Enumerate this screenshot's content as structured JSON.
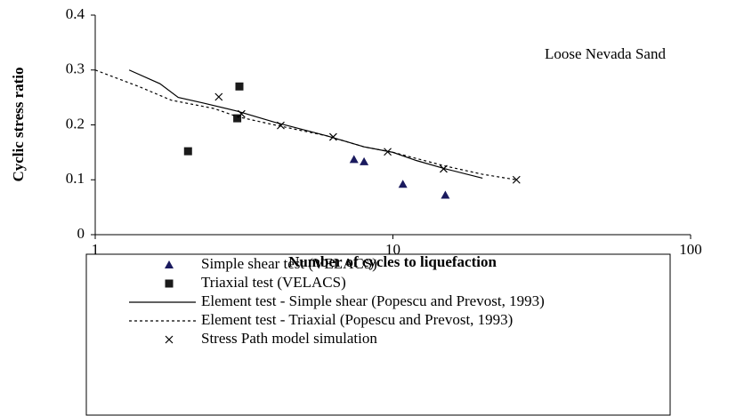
{
  "chart_data": {
    "type": "scatter",
    "annotation": "Loose Nevada Sand",
    "xlabel": "Number of cycles to liquefaction",
    "ylabel": "Cyclic stress ratio",
    "log_x": true,
    "xlim": [
      1,
      100
    ],
    "xticks": [
      1,
      10,
      100
    ],
    "ylim": [
      0,
      0.4
    ],
    "yticks": [
      0,
      0.1,
      0.2,
      0.3,
      0.4
    ],
    "series": [
      {
        "name": "Simple shear test (VELACS)",
        "marker": "triangle",
        "color": "#1a1a5e",
        "x": [
          7.4,
          8.0,
          10.8,
          15
        ],
        "values": [
          0.137,
          0.133,
          0.092,
          0.072
        ]
      },
      {
        "name": "Triaxial test (VELACS)",
        "marker": "square",
        "color": "#1a1a1a",
        "x": [
          3.05,
          3.0,
          2.05
        ],
        "values": [
          0.27,
          0.212,
          0.152
        ]
      },
      {
        "name": "Element test - Simple shear (Popescu and Prevost, 1993)",
        "line": "solid",
        "color": "#000000",
        "x": [
          1.3,
          1.65,
          1.9,
          2.3,
          3,
          4,
          6,
          8,
          10,
          12,
          15,
          20
        ],
        "values": [
          0.3,
          0.275,
          0.25,
          0.24,
          0.225,
          0.205,
          0.18,
          0.16,
          0.15,
          0.135,
          0.12,
          0.103
        ]
      },
      {
        "name": "Element test - Triaxial (Popescu and Prevost, 1993)",
        "line": "dotted",
        "color": "#000000",
        "x": [
          1,
          1.4,
          1.8,
          2.5,
          3,
          4,
          6,
          8,
          10,
          15,
          20,
          26
        ],
        "values": [
          0.3,
          0.27,
          0.245,
          0.23,
          0.215,
          0.2,
          0.18,
          0.16,
          0.15,
          0.125,
          0.11,
          0.1
        ]
      },
      {
        "name": "Stress Path model simulation",
        "marker": "x",
        "color": "#000000",
        "x": [
          2.6,
          3.1,
          4.2,
          6.3,
          9.6,
          14.8,
          26
        ],
        "values": [
          0.251,
          0.22,
          0.199,
          0.178,
          0.151,
          0.12,
          0.1
        ]
      }
    ]
  }
}
